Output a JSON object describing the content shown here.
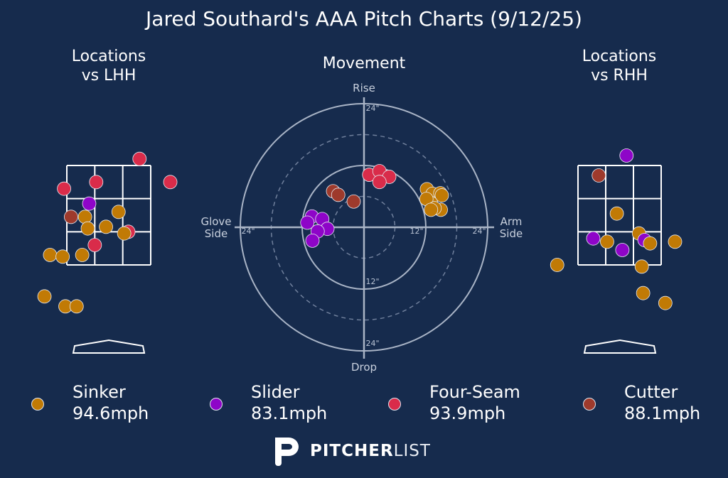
{
  "title": "Jared Southard's AAA Pitch Charts (9/12/25)",
  "panels": {
    "lhh_title_line1": "Locations",
    "lhh_title_line2": "vs LHH",
    "movement_title": "Movement",
    "rhh_title_line1": "Locations",
    "rhh_title_line2": "vs RHH"
  },
  "colors": {
    "background": "#162b4d",
    "Sinker": "#c17a05",
    "Slider": "#8e05c8",
    "Four-Seam": "#d92c4a",
    "Cutter": "#9e3a2c"
  },
  "legend": [
    {
      "name": "Sinker",
      "speed": "94.6mph"
    },
    {
      "name": "Slider",
      "speed": "83.1mph"
    },
    {
      "name": "Four-Seam",
      "speed": "93.9mph"
    },
    {
      "name": "Cutter",
      "speed": "88.1mph"
    }
  ],
  "brand": {
    "bold": "PITCHER",
    "light": "LIST",
    "logo_icon": "pitcherlist-p-icon"
  },
  "chart_data": [
    {
      "type": "scatter",
      "title": "Locations vs LHH",
      "x_units": "zone columns (0-3 across strike zone)",
      "y_units": "zone rows (0 bottom - 3 top)",
      "points": [
        {
          "pitch": "Four-Seam",
          "x": 2.6,
          "y": 3.2
        },
        {
          "pitch": "Four-Seam",
          "x": 3.7,
          "y": 2.5
        },
        {
          "pitch": "Four-Seam",
          "x": 1.05,
          "y": 2.5
        },
        {
          "pitch": "Four-Seam",
          "x": -0.1,
          "y": 2.3
        },
        {
          "pitch": "Four-Seam",
          "x": 1.0,
          "y": 0.6
        },
        {
          "pitch": "Four-Seam",
          "x": 2.2,
          "y": 1.0
        },
        {
          "pitch": "Slider",
          "x": 0.8,
          "y": 1.85
        },
        {
          "pitch": "Cutter",
          "x": 0.15,
          "y": 1.45
        },
        {
          "pitch": "Sinker",
          "x": 0.65,
          "y": 1.45
        },
        {
          "pitch": "Sinker",
          "x": 1.85,
          "y": 1.6
        },
        {
          "pitch": "Sinker",
          "x": 0.75,
          "y": 1.1
        },
        {
          "pitch": "Sinker",
          "x": 1.4,
          "y": 1.15
        },
        {
          "pitch": "Sinker",
          "x": 2.05,
          "y": 0.95
        },
        {
          "pitch": "Sinker",
          "x": -0.6,
          "y": 0.3
        },
        {
          "pitch": "Sinker",
          "x": -0.15,
          "y": 0.25
        },
        {
          "pitch": "Sinker",
          "x": 0.55,
          "y": 0.3
        },
        {
          "pitch": "Sinker",
          "x": -0.8,
          "y": -0.95
        },
        {
          "pitch": "Sinker",
          "x": -0.05,
          "y": -1.25
        },
        {
          "pitch": "Sinker",
          "x": 0.35,
          "y": -1.25
        }
      ]
    },
    {
      "type": "scatter",
      "title": "Movement",
      "xlabel_left": "Glove Side",
      "xlabel_right": "Arm Side",
      "ylabel_top": "Rise",
      "ylabel_bottom": "Drop",
      "units": "inches",
      "rings": [
        12,
        24
      ],
      "ring_labels": [
        "24\"",
        "24\"",
        "12\"",
        "24\"",
        "12\"",
        "24\""
      ],
      "points": [
        {
          "pitch": "Four-Seam",
          "x": 1.0,
          "y": 10.2
        },
        {
          "pitch": "Four-Seam",
          "x": 3.0,
          "y": 10.9
        },
        {
          "pitch": "Four-Seam",
          "x": 4.9,
          "y": 9.8
        },
        {
          "pitch": "Four-Seam",
          "x": 3.0,
          "y": 8.8
        },
        {
          "pitch": "Cutter",
          "x": -6.0,
          "y": 7.0
        },
        {
          "pitch": "Cutter",
          "x": -5.0,
          "y": 6.3
        },
        {
          "pitch": "Cutter",
          "x": -2.0,
          "y": 5.0
        },
        {
          "pitch": "Sinker",
          "x": 12.2,
          "y": 7.4
        },
        {
          "pitch": "Sinker",
          "x": 13.3,
          "y": 6.5
        },
        {
          "pitch": "Sinker",
          "x": 14.8,
          "y": 6.6
        },
        {
          "pitch": "Sinker",
          "x": 15.1,
          "y": 6.2
        },
        {
          "pitch": "Sinker",
          "x": 13.0,
          "y": 4.7
        },
        {
          "pitch": "Sinker",
          "x": 12.1,
          "y": 5.5
        },
        {
          "pitch": "Sinker",
          "x": 14.9,
          "y": 3.4
        },
        {
          "pitch": "Sinker",
          "x": 13.7,
          "y": 3.7
        },
        {
          "pitch": "Sinker",
          "x": 13.0,
          "y": 3.4
        },
        {
          "pitch": "Slider",
          "x": -10.1,
          "y": 2.1
        },
        {
          "pitch": "Slider",
          "x": -8.1,
          "y": 1.6
        },
        {
          "pitch": "Slider",
          "x": -11.0,
          "y": 0.9
        },
        {
          "pitch": "Slider",
          "x": -7.1,
          "y": -0.3
        },
        {
          "pitch": "Slider",
          "x": -9.0,
          "y": -0.8
        },
        {
          "pitch": "Slider",
          "x": -10.0,
          "y": -2.6
        }
      ]
    },
    {
      "type": "scatter",
      "title": "Locations vs RHH",
      "x_units": "zone columns (0-3 across strike zone)",
      "y_units": "zone rows (0 bottom - 3 top)",
      "points": [
        {
          "pitch": "Slider",
          "x": 1.75,
          "y": 3.3
        },
        {
          "pitch": "Cutter",
          "x": 0.75,
          "y": 2.7
        },
        {
          "pitch": "Sinker",
          "x": 1.4,
          "y": 1.55
        },
        {
          "pitch": "Sinker",
          "x": 2.2,
          "y": 0.95
        },
        {
          "pitch": "Slider",
          "x": 0.55,
          "y": 0.8
        },
        {
          "pitch": "Sinker",
          "x": 1.05,
          "y": 0.7
        },
        {
          "pitch": "Slider",
          "x": 1.6,
          "y": 0.45
        },
        {
          "pitch": "Slider",
          "x": 2.4,
          "y": 0.75
        },
        {
          "pitch": "Sinker",
          "x": 2.6,
          "y": 0.65
        },
        {
          "pitch": "Sinker",
          "x": 3.5,
          "y": 0.7
        },
        {
          "pitch": "Sinker",
          "x": -0.75,
          "y": 0.0
        },
        {
          "pitch": "Sinker",
          "x": 2.3,
          "y": -0.05
        },
        {
          "pitch": "Sinker",
          "x": 2.35,
          "y": -0.85
        },
        {
          "pitch": "Sinker",
          "x": 3.15,
          "y": -1.15
        }
      ]
    }
  ]
}
